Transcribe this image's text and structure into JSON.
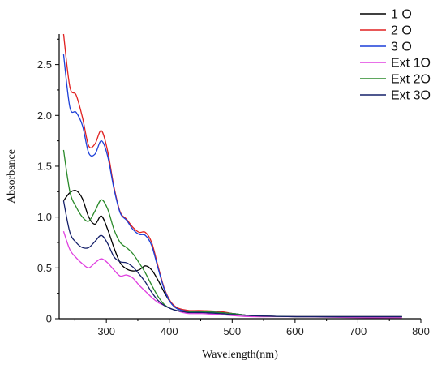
{
  "chart_data": {
    "type": "line",
    "title": "",
    "xlabel": "Wavelength(nm)",
    "ylabel": "Absorbance",
    "xlim": [
      225,
      800
    ],
    "ylim": [
      0,
      2.8
    ],
    "x_ticks": [
      300,
      400,
      500,
      600,
      700,
      800
    ],
    "x_tick_labels": [
      "300",
      "400",
      "500",
      "600",
      "700",
      "800"
    ],
    "y_ticks": [
      0,
      0.5,
      1.0,
      1.5,
      2.0,
      2.5
    ],
    "y_tick_labels": [
      "0",
      "0.5",
      "1.0",
      "1.5",
      "2.0",
      "2.5"
    ],
    "grid": false,
    "legend_position": "top-right",
    "series": [
      {
        "name": "1 O",
        "color": "#000000",
        "x": [
          232,
          242,
          252,
          262,
          272,
          282,
          292,
          302,
          312,
          322,
          332,
          342,
          352,
          362,
          372,
          382,
          392,
          402,
          412,
          422,
          432,
          452,
          482,
          502,
          532,
          602,
          702,
          770
        ],
        "y": [
          1.16,
          1.24,
          1.26,
          1.18,
          1.0,
          0.93,
          1.01,
          0.88,
          0.7,
          0.55,
          0.49,
          0.47,
          0.48,
          0.52,
          0.48,
          0.38,
          0.26,
          0.16,
          0.1,
          0.08,
          0.07,
          0.07,
          0.06,
          0.05,
          0.03,
          0.02,
          0.02,
          0.02
        ]
      },
      {
        "name": "2 O",
        "color": "#e02020",
        "x": [
          232,
          242,
          252,
          262,
          272,
          282,
          292,
          302,
          312,
          322,
          332,
          342,
          352,
          362,
          372,
          382,
          392,
          402,
          412,
          422,
          432,
          452,
          482,
          502,
          532,
          602,
          702,
          770
        ],
        "y": [
          2.8,
          2.28,
          2.2,
          1.98,
          1.7,
          1.72,
          1.85,
          1.65,
          1.3,
          1.05,
          0.98,
          0.9,
          0.85,
          0.85,
          0.75,
          0.52,
          0.3,
          0.17,
          0.11,
          0.09,
          0.08,
          0.08,
          0.07,
          0.05,
          0.03,
          0.02,
          0.02,
          0.02
        ]
      },
      {
        "name": "3 O",
        "color": "#1c3fd8",
        "x": [
          232,
          242,
          252,
          262,
          272,
          282,
          292,
          302,
          312,
          322,
          332,
          342,
          352,
          362,
          372,
          382,
          392,
          402,
          412,
          422,
          432,
          452,
          482,
          502,
          532,
          602,
          702,
          770
        ],
        "y": [
          2.6,
          2.08,
          2.03,
          1.9,
          1.63,
          1.62,
          1.75,
          1.6,
          1.28,
          1.04,
          0.97,
          0.88,
          0.83,
          0.82,
          0.72,
          0.5,
          0.29,
          0.16,
          0.1,
          0.08,
          0.07,
          0.07,
          0.06,
          0.05,
          0.03,
          0.02,
          0.02,
          0.02
        ]
      },
      {
        "name": "Ext 1O",
        "color": "#e040e0",
        "x": [
          232,
          242,
          252,
          262,
          272,
          282,
          292,
          302,
          312,
          322,
          332,
          342,
          352,
          362,
          372,
          382,
          392,
          402,
          412,
          422,
          432,
          452,
          482,
          502,
          532,
          602,
          702,
          770
        ],
        "y": [
          0.86,
          0.68,
          0.6,
          0.54,
          0.5,
          0.55,
          0.59,
          0.55,
          0.48,
          0.42,
          0.43,
          0.4,
          0.33,
          0.27,
          0.21,
          0.16,
          0.13,
          0.1,
          0.08,
          0.06,
          0.05,
          0.05,
          0.04,
          0.03,
          0.02,
          0.02,
          0.01,
          0.01
        ]
      },
      {
        "name": "Ext 2O",
        "color": "#2a8a2a",
        "x": [
          232,
          242,
          252,
          262,
          272,
          282,
          292,
          302,
          312,
          322,
          332,
          342,
          352,
          362,
          372,
          382,
          392,
          402,
          412,
          422,
          432,
          452,
          482,
          502,
          532,
          602,
          702,
          770
        ],
        "y": [
          1.66,
          1.25,
          1.1,
          1.0,
          0.96,
          1.06,
          1.17,
          1.08,
          0.88,
          0.75,
          0.7,
          0.64,
          0.55,
          0.45,
          0.33,
          0.22,
          0.14,
          0.1,
          0.08,
          0.07,
          0.07,
          0.07,
          0.06,
          0.05,
          0.03,
          0.02,
          0.02,
          0.02
        ]
      },
      {
        "name": "Ext 3O",
        "color": "#15206a",
        "x": [
          232,
          242,
          252,
          262,
          272,
          282,
          292,
          302,
          312,
          322,
          332,
          342,
          352,
          362,
          372,
          382,
          392,
          402,
          412,
          422,
          432,
          452,
          482,
          502,
          532,
          602,
          702,
          770
        ],
        "y": [
          1.16,
          0.85,
          0.75,
          0.7,
          0.7,
          0.76,
          0.82,
          0.74,
          0.61,
          0.56,
          0.55,
          0.51,
          0.44,
          0.36,
          0.26,
          0.18,
          0.13,
          0.1,
          0.08,
          0.07,
          0.06,
          0.06,
          0.05,
          0.04,
          0.03,
          0.02,
          0.02,
          0.02
        ]
      }
    ]
  }
}
